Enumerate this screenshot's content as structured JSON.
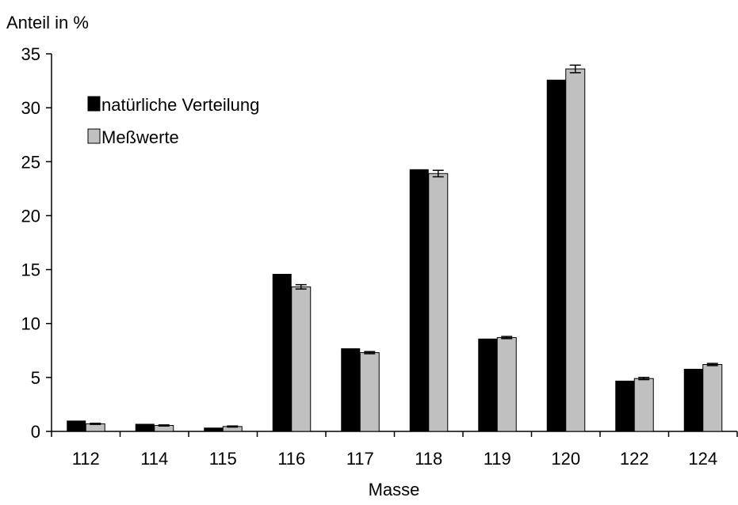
{
  "chart_data": {
    "type": "bar",
    "title": "",
    "ylabel": "Anteil in %",
    "xlabel": "Masse",
    "categories": [
      "112",
      "114",
      "115",
      "116",
      "117",
      "118",
      "119",
      "120",
      "122",
      "124"
    ],
    "series": [
      {
        "name": "natürliche Verteilung",
        "color": "#000000",
        "values": [
          1.0,
          0.7,
          0.35,
          14.6,
          7.7,
          24.3,
          8.6,
          32.6,
          4.7,
          5.8
        ]
      },
      {
        "name": "Meßwerte",
        "color": "#c0c0c0",
        "values": [
          0.7,
          0.55,
          0.45,
          13.4,
          7.3,
          23.9,
          8.7,
          33.6,
          4.9,
          6.2
        ],
        "errors": [
          0.05,
          0.05,
          0.05,
          0.2,
          0.1,
          0.3,
          0.1,
          0.35,
          0.1,
          0.1
        ]
      }
    ],
    "ylim": [
      0,
      35
    ],
    "yticks": [
      0,
      5,
      10,
      15,
      20,
      25,
      30,
      35
    ],
    "grid": false,
    "legend_position": "top-left"
  }
}
